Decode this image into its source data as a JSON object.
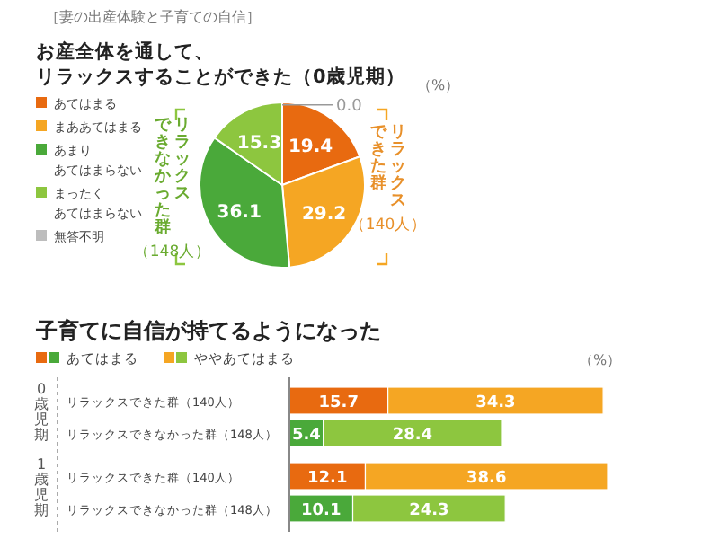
{
  "chart_data": [
    {
      "type": "pie",
      "title": "お産全体を通して、リラックスすることができた（0歳児期）",
      "categories": [
        "あてはまる",
        "まああてはまる",
        "あまりあてはまらない",
        "まったくあてはまらない",
        "無答不明"
      ],
      "values": [
        19.4,
        29.2,
        36.1,
        15.3,
        0.0
      ],
      "colors": [
        "#e86a10",
        "#f5a623",
        "#4aa93a",
        "#8dc63f",
        "#bdbdbd"
      ],
      "value_labels": [
        "19.4",
        "29.2",
        "36.1",
        "15.3",
        "0.0"
      ],
      "legend": "left",
      "annotations": [
        "［妻の出産体験と子育ての自信］",
        "（%）",
        "リラックスできた群（140人）",
        "リラックスできなかった群（148人）"
      ]
    },
    {
      "type": "bar",
      "orientation": "horizontal",
      "stacked": true,
      "title": "子育てに自信が持てるようになった",
      "categories": [
        "リラックスできた群（140人）",
        "リラックスできなかった群（148人）",
        "リラックスできた群（140人）",
        "リラックスできなかった群（148人）"
      ],
      "series": [
        {
          "name": "あてはまる",
          "colors": [
            "#e86a10",
            "#4aa93a",
            "#e86a10",
            "#4aa93a"
          ],
          "values": [
            15.7,
            5.4,
            12.1,
            10.1
          ]
        },
        {
          "name": "ややあてはまる",
          "colors": [
            "#f5a623",
            "#8dc63f",
            "#f5a623",
            "#8dc63f"
          ],
          "values": [
            34.3,
            28.4,
            38.6,
            24.3
          ]
        }
      ],
      "data_labels": true,
      "legend": "top left",
      "annotations": [
        "（%）",
        "0歳児期",
        "1歳児期"
      ]
    }
  ]
}
